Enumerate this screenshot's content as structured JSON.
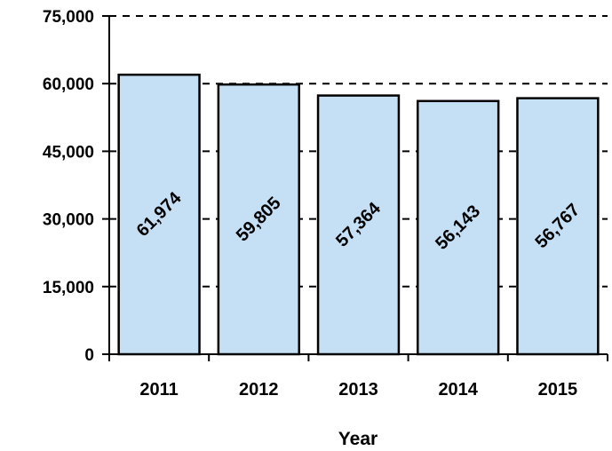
{
  "chart_data": {
    "type": "bar",
    "categories": [
      "2011",
      "2012",
      "2013",
      "2014",
      "2015"
    ],
    "values": [
      61974,
      59805,
      57364,
      56143,
      56767
    ],
    "data_labels": [
      "61,974",
      "59,805",
      "57,364",
      "56,143",
      "56,767"
    ],
    "title": "",
    "xlabel": "Year",
    "ylabel": "",
    "ylim": [
      0,
      75000
    ],
    "yticks": [
      0,
      15000,
      30000,
      45000,
      60000,
      75000
    ],
    "ytick_labels": [
      "0",
      "15,000",
      "30,000",
      "45,000",
      "60,000",
      "75,000"
    ],
    "grid": "horizontal dashed",
    "legend": "none",
    "colors": {
      "bar_fill": "#c5dff5",
      "bar_stroke": "#000000",
      "grid": "#000000"
    }
  }
}
